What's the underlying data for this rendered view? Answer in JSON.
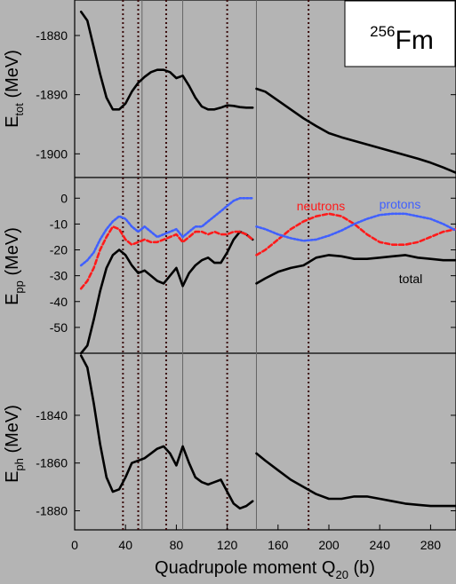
{
  "chart_data": [
    {
      "type": "line",
      "ylabel_main": "E",
      "ylabel_sub": "tot",
      "ylabel_unit": "(MeV)",
      "ylim": [
        -1904,
        -1874
      ],
      "yticks": [
        -1880,
        -1890,
        -1900
      ],
      "series": [
        {
          "segment": 1,
          "color": "#000000",
          "x": [
            5,
            10,
            15,
            20,
            25,
            30,
            35,
            40,
            45,
            50,
            55,
            60,
            65,
            70,
            75,
            80,
            85,
            90,
            95,
            100,
            105,
            110,
            115,
            120,
            125,
            130,
            135,
            140
          ],
          "y": [
            -1876,
            -1877.5,
            -1882,
            -1886.5,
            -1890.5,
            -1892.5,
            -1892.5,
            -1891.5,
            -1889.5,
            -1888,
            -1887,
            -1886.2,
            -1885.8,
            -1885.8,
            -1886.2,
            -1887.2,
            -1886.8,
            -1888.5,
            -1890.5,
            -1892,
            -1892.5,
            -1892.5,
            -1892.2,
            -1891.8,
            -1891.9,
            -1892.1,
            -1892.2,
            -1892.2
          ]
        },
        {
          "segment": 2,
          "color": "#000000",
          "x": [
            143,
            150,
            160,
            170,
            180,
            190,
            200,
            210,
            220,
            230,
            240,
            250,
            260,
            270,
            280,
            290,
            300
          ],
          "y": [
            -1889,
            -1889.5,
            -1891,
            -1892.5,
            -1894,
            -1895.3,
            -1896.5,
            -1897.2,
            -1897.8,
            -1898.4,
            -1899,
            -1899.6,
            -1900.2,
            -1900.8,
            -1901.5,
            -1902.3,
            -1903.2
          ]
        }
      ]
    },
    {
      "type": "line",
      "ylabel_main": "E",
      "ylabel_sub": "pp",
      "ylabel_unit": "(MeV)",
      "ylim": [
        -60,
        8
      ],
      "yticks": [
        0,
        -10,
        -20,
        -30,
        -40,
        -50
      ],
      "annotations": {
        "neutrons": "neutrons",
        "protons": "protons",
        "total": "total"
      },
      "series": [
        {
          "name": "total",
          "color": "#000000",
          "dash": "none",
          "segment": 1,
          "x": [
            5,
            10,
            15,
            20,
            25,
            30,
            35,
            40,
            45,
            50,
            55,
            60,
            65,
            70,
            75,
            80,
            85,
            90,
            95,
            100,
            105,
            110,
            115,
            120,
            125,
            130,
            135,
            140
          ],
          "y": [
            -60,
            -57,
            -47,
            -36,
            -27,
            -22,
            -20,
            -22,
            -26,
            -29,
            -28,
            -30,
            -32,
            -33,
            -30,
            -27,
            -34,
            -29,
            -26,
            -24,
            -23,
            -25,
            -25,
            -21,
            -16,
            -13,
            -14,
            -16
          ]
        },
        {
          "name": "total",
          "color": "#000000",
          "dash": "none",
          "segment": 2,
          "x": [
            143,
            150,
            160,
            170,
            180,
            190,
            200,
            210,
            220,
            230,
            240,
            250,
            260,
            270,
            280,
            290,
            300
          ],
          "y": [
            -33,
            -31,
            -28.5,
            -27,
            -26,
            -23,
            -22,
            -22.5,
            -23.5,
            -23.5,
            -23,
            -22.5,
            -22,
            -23,
            -23.5,
            -24,
            -24
          ]
        },
        {
          "name": "neutrons",
          "color": "#ff1a1a",
          "dash": "5,3",
          "segment": 1,
          "x": [
            5,
            10,
            15,
            20,
            25,
            30,
            35,
            40,
            45,
            50,
            55,
            60,
            65,
            70,
            75,
            80,
            85,
            90,
            95,
            100,
            105,
            110,
            115,
            120,
            125,
            130,
            135,
            140
          ],
          "y": [
            -35,
            -32,
            -27,
            -20,
            -15,
            -11,
            -12,
            -16,
            -18,
            -17,
            -16,
            -17,
            -17,
            -16,
            -15,
            -14,
            -17,
            -15,
            -13,
            -13,
            -14,
            -13,
            -14,
            -14,
            -13,
            -13,
            -14,
            -16
          ]
        },
        {
          "name": "neutrons",
          "color": "#ff1a1a",
          "dash": "5,3",
          "segment": 2,
          "x": [
            143,
            150,
            160,
            170,
            180,
            190,
            200,
            210,
            220,
            230,
            240,
            250,
            260,
            270,
            280,
            290,
            300
          ],
          "y": [
            -22,
            -20,
            -16,
            -12,
            -9,
            -7,
            -6,
            -7,
            -10,
            -14,
            -17,
            -18,
            -18,
            -17,
            -15,
            -13,
            -12
          ]
        },
        {
          "name": "protons",
          "color": "#4060ff",
          "dash": "2,2",
          "segment": 1,
          "x": [
            5,
            10,
            15,
            20,
            25,
            30,
            35,
            40,
            45,
            50,
            55,
            60,
            65,
            70,
            75,
            80,
            85,
            90,
            95,
            100,
            105,
            110,
            115,
            120,
            125,
            130,
            135,
            140
          ],
          "y": [
            -26,
            -24,
            -21,
            -16,
            -12,
            -9,
            -7,
            -8,
            -11,
            -13,
            -11,
            -13,
            -15,
            -14,
            -13,
            -12,
            -15,
            -13,
            -11,
            -11,
            -9,
            -7,
            -5,
            -3,
            -1,
            0,
            0,
            0
          ]
        },
        {
          "name": "protons",
          "color": "#4060ff",
          "dash": "2,2",
          "segment": 2,
          "x": [
            143,
            150,
            160,
            170,
            180,
            190,
            200,
            210,
            220,
            230,
            240,
            250,
            260,
            270,
            280,
            290,
            300
          ],
          "y": [
            -11,
            -12,
            -14,
            -15.5,
            -16.5,
            -16,
            -14.5,
            -12.5,
            -10,
            -8,
            -6.5,
            -6,
            -6,
            -7,
            -8,
            -10,
            -12.5
          ]
        }
      ]
    },
    {
      "type": "line",
      "ylabel_main": "E",
      "ylabel_sub": "ph",
      "ylabel_unit": "(MeV)",
      "xlabel_main": "Quadrupole moment Q",
      "xlabel_sub": "20",
      "xlabel_unit": "(b)",
      "xlim": [
        0,
        300
      ],
      "xticks": [
        0,
        40,
        80,
        120,
        160,
        200,
        240,
        280
      ],
      "ylim": [
        -1888,
        -1814
      ],
      "yticks": [
        -1840,
        -1860,
        -1880
      ],
      "series": [
        {
          "segment": 1,
          "color": "#000000",
          "x": [
            5,
            10,
            15,
            20,
            25,
            30,
            35,
            40,
            45,
            50,
            55,
            60,
            65,
            70,
            75,
            80,
            85,
            90,
            95,
            100,
            105,
            110,
            115,
            120,
            125,
            130,
            135,
            140
          ],
          "y": [
            -1815,
            -1820,
            -1835,
            -1852,
            -1866,
            -1872,
            -1871,
            -1866,
            -1860,
            -1859,
            -1858,
            -1856,
            -1854,
            -1853,
            -1856,
            -1861,
            -1853,
            -1860,
            -1866,
            -1868,
            -1869,
            -1868,
            -1867,
            -1872,
            -1877,
            -1879,
            -1878,
            -1876
          ]
        },
        {
          "segment": 2,
          "color": "#000000",
          "x": [
            143,
            150,
            160,
            170,
            180,
            190,
            200,
            210,
            220,
            230,
            240,
            250,
            260,
            270,
            280,
            290,
            300
          ],
          "y": [
            -1856,
            -1859,
            -1863,
            -1867,
            -1870,
            -1873,
            -1875,
            -1875,
            -1874,
            -1874,
            -1875,
            -1876,
            -1877,
            -1877.5,
            -1878,
            -1878,
            -1878
          ]
        }
      ]
    }
  ],
  "nucleus": {
    "mass": "256",
    "symbol": "Fm"
  },
  "vertical_lines": {
    "dotted": [
      38,
      50,
      72,
      120,
      184
    ],
    "solid": [
      53,
      85,
      143
    ]
  }
}
